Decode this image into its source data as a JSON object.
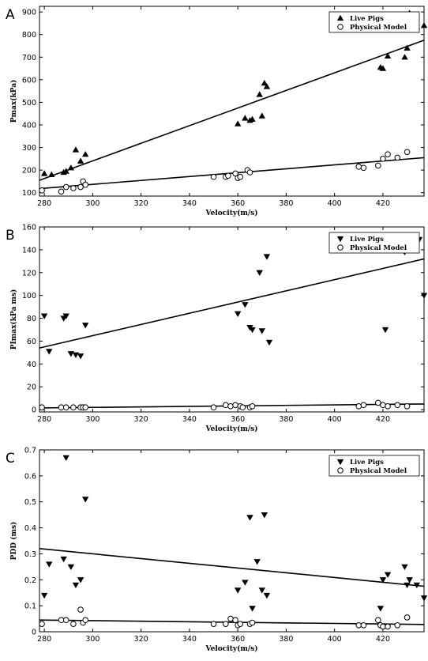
{
  "chart_data": [
    {
      "type": "scatter",
      "panel": "A",
      "xlabel": "Velocity(m/s)",
      "ylabel": "Pmax(kPa)",
      "xlim": [
        278,
        437
      ],
      "ylim": [
        85,
        925
      ],
      "xticks": [
        280,
        300,
        320,
        340,
        360,
        380,
        400,
        420
      ],
      "yticks": [
        100,
        200,
        300,
        400,
        500,
        600,
        700,
        800,
        900
      ],
      "legend_position": "top-right",
      "series": [
        {
          "name": "Live Pigs",
          "marker": "triangle-up",
          "x": [
            280,
            283,
            288,
            289,
            291,
            293,
            295,
            297,
            360,
            363,
            365,
            366,
            369,
            370,
            371,
            372,
            419,
            420,
            422,
            429,
            430,
            431,
            434,
            437
          ],
          "y": [
            185,
            180,
            190,
            195,
            210,
            290,
            240,
            270,
            405,
            430,
            420,
            425,
            535,
            440,
            585,
            570,
            655,
            650,
            705,
            700,
            740,
            895,
            835,
            840
          ],
          "fit": [
            [
              278,
              155
            ],
            [
              437,
              775
            ]
          ]
        },
        {
          "name": "Physical Model",
          "marker": "circle-open",
          "x": [
            279,
            287,
            289,
            292,
            295,
            296,
            297,
            350,
            355,
            356,
            359,
            360,
            361,
            364,
            365,
            410,
            412,
            418,
            420,
            422,
            426,
            430
          ],
          "y": [
            110,
            105,
            125,
            120,
            125,
            150,
            135,
            170,
            170,
            175,
            185,
            165,
            170,
            200,
            190,
            215,
            210,
            220,
            250,
            270,
            255,
            280
          ],
          "fit": [
            [
              278,
              118
            ],
            [
              437,
              255
            ]
          ]
        }
      ]
    },
    {
      "type": "scatter",
      "panel": "B",
      "xlabel": "Velocity(m/s)",
      "ylabel": "PImax(kPa ms)",
      "xlim": [
        278,
        437
      ],
      "ylim": [
        -2,
        160
      ],
      "xticks": [
        280,
        300,
        320,
        340,
        360,
        380,
        400,
        420
      ],
      "yticks": [
        0,
        20,
        40,
        60,
        80,
        100,
        120,
        140,
        160
      ],
      "legend_position": "top-right",
      "series": [
        {
          "name": "Live Pigs",
          "marker": "triangle-down",
          "x": [
            280,
            282,
            288,
            289,
            291,
            293,
            295,
            297,
            360,
            363,
            365,
            366,
            369,
            370,
            372,
            373,
            420,
            421,
            423,
            429,
            430,
            431,
            435,
            437
          ],
          "y": [
            82,
            51,
            80,
            82,
            49,
            48,
            47,
            74,
            84,
            92,
            72,
            70,
            120,
            69,
            134,
            59,
            153,
            70,
            153,
            138,
            148,
            150,
            149,
            100
          ],
          "fit": [
            [
              278,
              54
            ],
            [
              437,
              132
            ]
          ]
        },
        {
          "name": "Physical Model",
          "marker": "circle-open",
          "x": [
            279,
            287,
            289,
            292,
            295,
            296,
            297,
            350,
            355,
            357,
            359,
            361,
            362,
            365,
            366,
            410,
            412,
            418,
            420,
            422,
            426,
            430
          ],
          "y": [
            2,
            2,
            2,
            2,
            2,
            2,
            2,
            2,
            4,
            3,
            4,
            3,
            2,
            2,
            3,
            3,
            4,
            6,
            4,
            3,
            4,
            3
          ],
          "fit": [
            [
              278,
              1.5
            ],
            [
              437,
              5
            ]
          ]
        }
      ]
    },
    {
      "type": "scatter",
      "panel": "C",
      "xlabel": "Velocity(m/s)",
      "ylabel": "PDD (ms)",
      "xlim": [
        278,
        437
      ],
      "ylim": [
        0,
        0.7
      ],
      "xticks": [
        280,
        300,
        320,
        340,
        360,
        380,
        400,
        420
      ],
      "yticks": [
        0,
        0.1,
        0.2,
        0.3,
        0.4,
        0.5,
        0.6,
        0.7
      ],
      "legend_position": "top-right",
      "series": [
        {
          "name": "Live Pigs",
          "marker": "triangle-down",
          "x": [
            280,
            282,
            288,
            289,
            291,
            293,
            295,
            297,
            360,
            363,
            365,
            366,
            368,
            370,
            371,
            372,
            419,
            420,
            422,
            429,
            430,
            431,
            434,
            437
          ],
          "y": [
            0.14,
            0.26,
            0.28,
            0.67,
            0.25,
            0.18,
            0.2,
            0.51,
            0.16,
            0.19,
            0.44,
            0.09,
            0.27,
            0.16,
            0.45,
            0.14,
            0.09,
            0.2,
            0.22,
            0.25,
            0.18,
            0.2,
            0.18,
            0.13
          ],
          "fit": [
            [
              278,
              0.32
            ],
            [
              437,
              0.175
            ]
          ]
        },
        {
          "name": "Physical Model",
          "marker": "circle-open",
          "x": [
            279,
            287,
            289,
            292,
            295,
            296,
            297,
            350,
            355,
            357,
            359,
            360,
            361,
            365,
            366,
            410,
            412,
            418,
            419,
            420,
            422,
            426,
            430
          ],
          "y": [
            0.03,
            0.045,
            0.045,
            0.03,
            0.085,
            0.035,
            0.045,
            0.03,
            0.03,
            0.05,
            0.045,
            0.025,
            0.03,
            0.03,
            0.035,
            0.025,
            0.025,
            0.045,
            0.025,
            0.02,
            0.02,
            0.025,
            0.055
          ],
          "fit": [
            [
              278,
              0.045
            ],
            [
              437,
              0.028
            ]
          ]
        }
      ]
    }
  ]
}
